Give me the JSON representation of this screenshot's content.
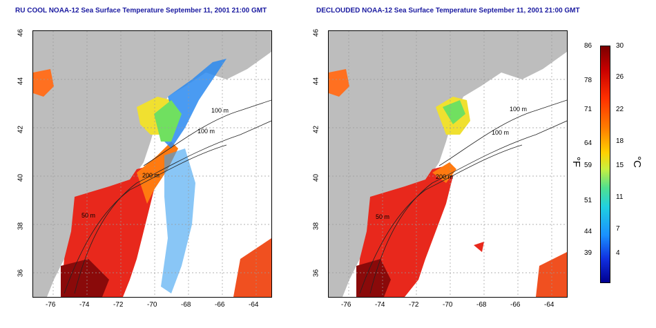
{
  "left_panel": {
    "title": "RU COOL NOAA-12 Sea Surface Temperature September 11, 2001 21:00 GMT"
  },
  "right_panel": {
    "title": "DECLOUDED NOAA-12 Sea Surface Temperature September 11, 2001 21:00 GMT"
  },
  "lat_ticks": [
    "46",
    "44",
    "42",
    "40",
    "38",
    "36"
  ],
  "lon_ticks": [
    "-76",
    "-74",
    "-72",
    "-70",
    "-68",
    "-66",
    "-64"
  ],
  "contours": {
    "c100": "100 m",
    "c50": "50 m",
    "c200": "200 m",
    "c100b": "100 m"
  },
  "colorbar": {
    "fahrenheit": [
      "86",
      "78",
      "71",
      "64",
      "59",
      "51",
      "44",
      "39"
    ],
    "celsius": [
      "30",
      "26",
      "22",
      "18",
      "15",
      "11",
      "7",
      "4"
    ],
    "unit_f": "°F",
    "unit_c": "°C"
  },
  "colors": {
    "land": "#bdbdbd",
    "title": "#1a1aa0"
  }
}
